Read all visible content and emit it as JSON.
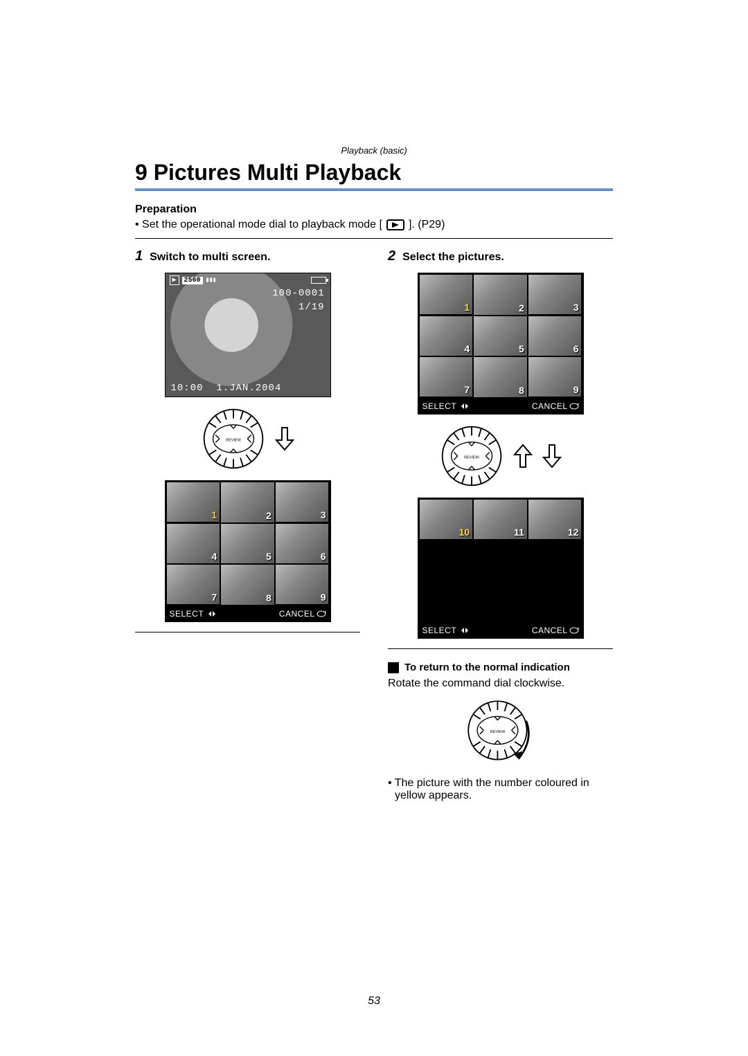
{
  "header": "Playback (basic)",
  "title": "9 Pictures Multi Playback",
  "preparation": {
    "heading": "Preparation",
    "bullet_prefix": "• Set the operational mode dial to playback mode [",
    "bullet_suffix": "]. (P29)"
  },
  "step1": {
    "num": "1",
    "title": "Switch to multi screen.",
    "lcd_size": "2560",
    "lcd_file": "100-0001",
    "lcd_index": "1/19",
    "lcd_time": "10:00",
    "lcd_date": "1.JAN.2004",
    "grid": {
      "labels": [
        "1",
        "2",
        "3",
        "4",
        "5",
        "6",
        "7",
        "8",
        "9"
      ],
      "highlight": 0,
      "select": "SELECT",
      "cancel": "CANCEL"
    }
  },
  "step2": {
    "num": "2",
    "title": "Select the pictures.",
    "gridA": {
      "labels": [
        "1",
        "2",
        "3",
        "4",
        "5",
        "6",
        "7",
        "8",
        "9"
      ],
      "highlight": 0,
      "select": "SELECT",
      "cancel": "CANCEL"
    },
    "gridB": {
      "labels": [
        "10",
        "11",
        "12"
      ],
      "highlight": 0,
      "select": "SELECT",
      "cancel": "CANCEL"
    },
    "return": {
      "title": "To return to the normal indication",
      "body": "Rotate the command dial clockwise.",
      "note": "• The picture with the number coloured in yellow appears."
    }
  },
  "page_number": "53",
  "colors": {
    "accent": "#5a8ac2",
    "highlight": "#ffd54a"
  }
}
